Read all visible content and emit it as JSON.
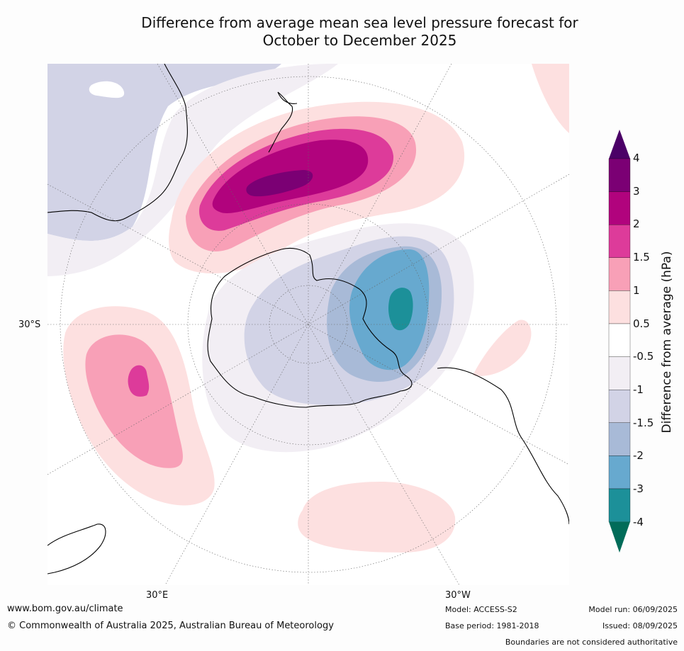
{
  "title_line1": "Difference from average mean sea level pressure forecast for",
  "title_line2": "October to December 2025",
  "labels": {
    "lat_30s": "30°S",
    "lon_30e": "30°E",
    "lon_30w": "30°W"
  },
  "colorbar": {
    "title": "Difference from average (hPa)",
    "ticks": [
      "4",
      "3",
      "2",
      "1.5",
      "1",
      "0.5",
      "-0.5",
      "-1",
      "-1.5",
      "-2",
      "-3",
      "-4"
    ],
    "colors": [
      "#4b0067",
      "#7b0074",
      "#b1037d",
      "#dd3b9a",
      "#f8a0b7",
      "#fde0e0",
      "#ffffff",
      "#f2eef4",
      "#d2d3e6",
      "#a8bad7",
      "#67a9cf",
      "#1c9099",
      "#016c59"
    ]
  },
  "footer": {
    "website": "www.bom.gov.au/climate",
    "copyright": "© Commonwealth of Australia 2025, Australian Bureau of Meteorology",
    "model": "Model: ACCESS-S2",
    "base_period": "Base period: 1981-2018",
    "model_run": "Model run: 06/09/2025",
    "issued": "Issued: 08/09/2025",
    "disclaimer": "Boundaries are not considered authoritative"
  }
}
